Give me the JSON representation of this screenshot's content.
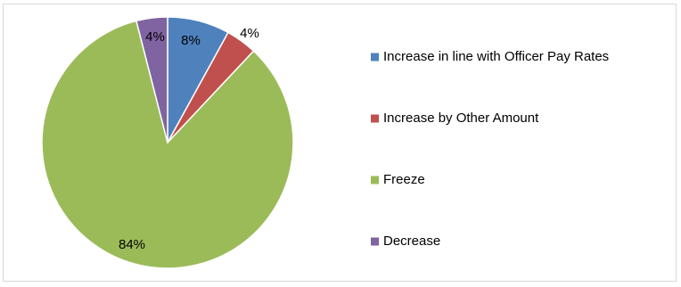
{
  "chart_data": {
    "type": "pie",
    "title": "",
    "legend_position": "right",
    "slices": [
      {
        "label": "Increase in line with Officer Pay Rates",
        "value": 8,
        "display": "8%",
        "color": "#4f81bd"
      },
      {
        "label": "Increase by Other Amount",
        "value": 4,
        "display": "4%",
        "color": "#c0504d"
      },
      {
        "label": "Freeze",
        "value": 84,
        "display": "84%",
        "color": "#9bbb59"
      },
      {
        "label": "Decrease",
        "value": 4,
        "display": "4%",
        "color": "#8064a2"
      }
    ]
  }
}
